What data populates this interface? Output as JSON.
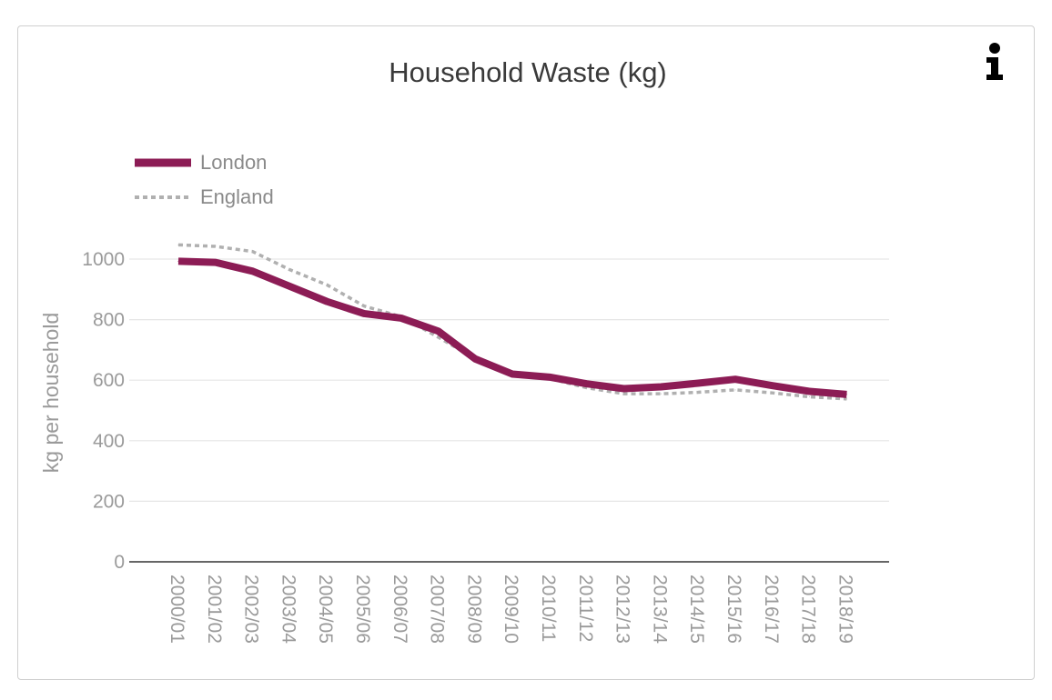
{
  "info_icon": "info-icon",
  "colors": {
    "london": "#8c1c55",
    "england": "#b0b0b0",
    "grid": "#e6e6e6",
    "axis": "#333333"
  },
  "chart_data": {
    "type": "line",
    "title": "Household Waste (kg)",
    "xlabel": "",
    "ylabel": "kg per household",
    "ylim": [
      0,
      1000
    ],
    "yticks": [
      0,
      200,
      400,
      600,
      800,
      1000
    ],
    "grid": true,
    "legend_position": "top-left",
    "categories": [
      "2000/01",
      "2001/02",
      "2002/03",
      "2003/04",
      "2004/05",
      "2005/06",
      "2006/07",
      "2007/08",
      "2008/09",
      "2009/10",
      "2010/11",
      "2011/12",
      "2012/13",
      "2013/14",
      "2014/15",
      "2015/16",
      "2016/17",
      "2017/18",
      "2018/19"
    ],
    "series": [
      {
        "name": "London",
        "style": "solid",
        "values": [
          993,
          989,
          960,
          910,
          860,
          820,
          805,
          762,
          670,
          620,
          610,
          588,
          572,
          578,
          590,
          603,
          582,
          563,
          553
        ]
      },
      {
        "name": "England",
        "style": "dotted",
        "values": [
          1047,
          1042,
          1025,
          965,
          915,
          845,
          810,
          742,
          670,
          625,
          605,
          575,
          555,
          555,
          560,
          568,
          558,
          545,
          538
        ]
      }
    ]
  }
}
